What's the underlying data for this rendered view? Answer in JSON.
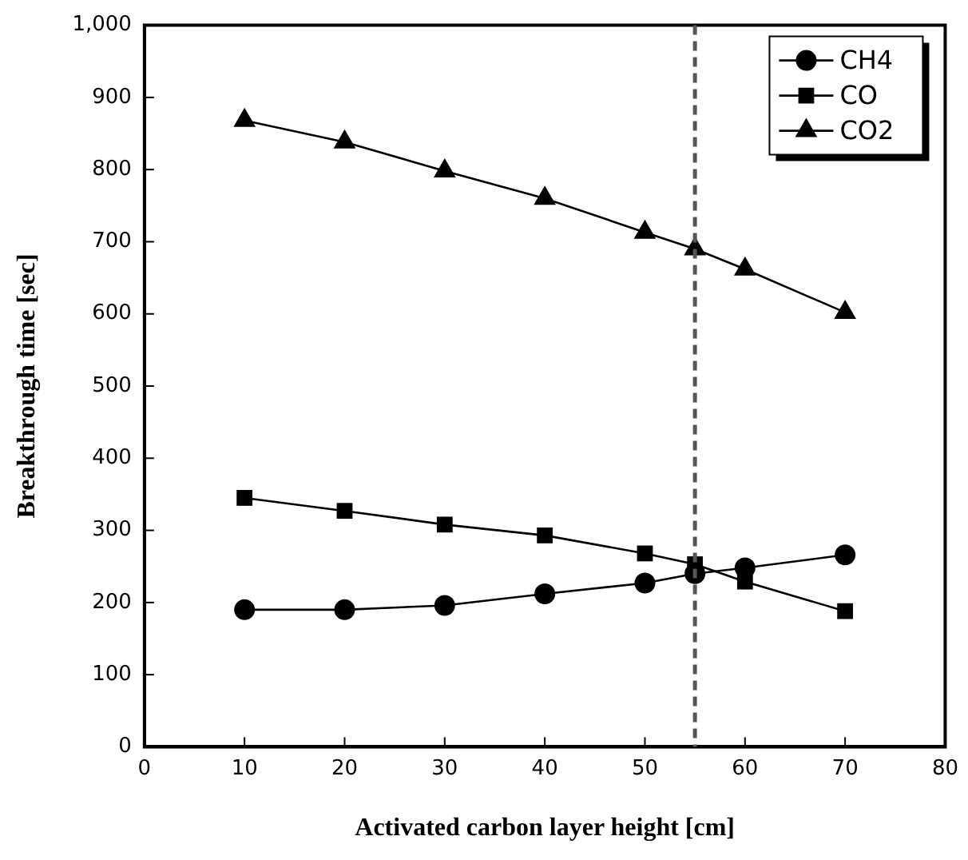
{
  "chart_data": {
    "type": "line",
    "xlabel": "Activated carbon layer height [cm]",
    "ylabel": "Breakthrough time [sec]",
    "x": [
      10,
      20,
      30,
      40,
      50,
      55,
      60,
      70
    ],
    "series": [
      {
        "name": "CH4",
        "color": "#000000",
        "marker": "circle",
        "values": [
          190,
          190,
          196,
          212,
          227,
          240,
          248,
          266
        ]
      },
      {
        "name": "CO",
        "color": "#000000",
        "marker": "square",
        "values": [
          345,
          327,
          308,
          293,
          268,
          253,
          229,
          188
        ]
      },
      {
        "name": "CO2",
        "color": "#000000",
        "marker": "triangle",
        "values": [
          868,
          838,
          798,
          760,
          713,
          690,
          662,
          602
        ]
      }
    ],
    "xlim": [
      0,
      80
    ],
    "xticks": [
      0,
      10,
      20,
      30,
      40,
      50,
      60,
      70,
      80
    ],
    "ylim": [
      0,
      1000
    ],
    "yticks": [
      0,
      100,
      200,
      300,
      400,
      500,
      600,
      700,
      800,
      900,
      {
        "value": 1000,
        "label": "1,000"
      }
    ],
    "ref_lines": [
      {
        "axis": "x",
        "value": 55,
        "color": "#555555",
        "line_style": "dashed"
      }
    ],
    "grid": false,
    "legend": "top right",
    "line_style": "solid"
  }
}
